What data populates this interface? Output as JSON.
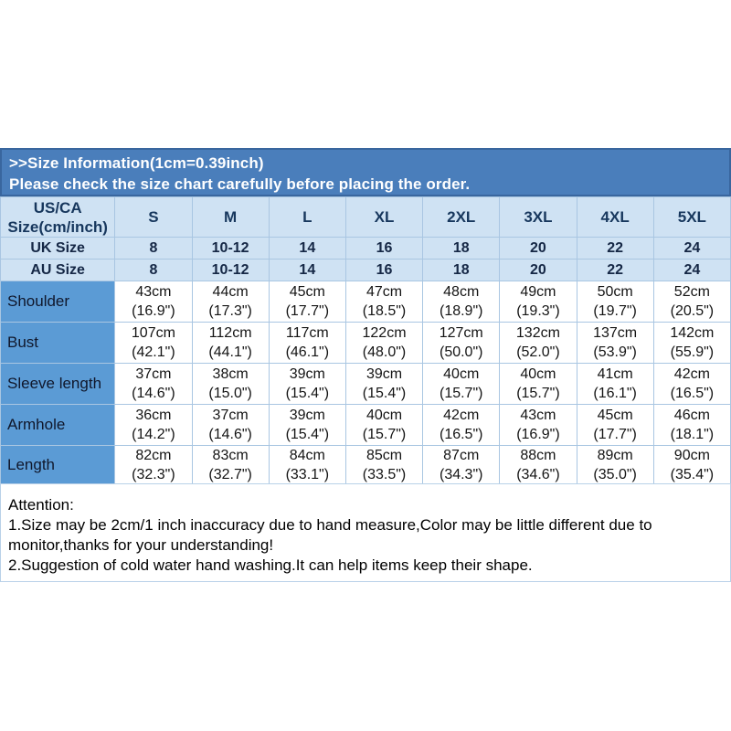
{
  "colors": {
    "title_bar_bg": "#4a7ebb",
    "title_bar_border": "#39669e",
    "title_text": "#ffffff",
    "header_cell_bg": "#cfe2f3",
    "label_cell_bg": "#5b9bd5",
    "grid_line": "#a9c6e2",
    "header_text": "#17375d",
    "cell_text": "#141414"
  },
  "title_bar": {
    "line1": ">>Size Information(1cm=0.39inch)",
    "line2": "Please check the size chart carefully before placing the order."
  },
  "table": {
    "corner_line1": "US/CA",
    "corner_line2": "Size(cm/inch)",
    "columns": [
      "S",
      "M",
      "L",
      "XL",
      "2XL",
      "3XL",
      "4XL",
      "5XL"
    ],
    "uk": {
      "label": "UK Size",
      "values": [
        "8",
        "10-12",
        "14",
        "16",
        "18",
        "20",
        "22",
        "24"
      ]
    },
    "au": {
      "label": "AU Size",
      "values": [
        "8",
        "10-12",
        "14",
        "16",
        "18",
        "20",
        "22",
        "24"
      ]
    },
    "rows": [
      {
        "label": "Shoulder",
        "values": [
          {
            "cm": "43cm",
            "in": "(16.9\")"
          },
          {
            "cm": "44cm",
            "in": "(17.3\")"
          },
          {
            "cm": "45cm",
            "in": "(17.7\")"
          },
          {
            "cm": "47cm",
            "in": "(18.5\")"
          },
          {
            "cm": "48cm",
            "in": "(18.9\")"
          },
          {
            "cm": "49cm",
            "in": "(19.3\")"
          },
          {
            "cm": "50cm",
            "in": "(19.7\")"
          },
          {
            "cm": "52cm",
            "in": "(20.5\")"
          }
        ]
      },
      {
        "label": "Bust",
        "values": [
          {
            "cm": "107cm",
            "in": "(42.1\")"
          },
          {
            "cm": "112cm",
            "in": "(44.1\")"
          },
          {
            "cm": "117cm",
            "in": "(46.1\")"
          },
          {
            "cm": "122cm",
            "in": "(48.0\")"
          },
          {
            "cm": "127cm",
            "in": "(50.0\")"
          },
          {
            "cm": "132cm",
            "in": "(52.0\")"
          },
          {
            "cm": "137cm",
            "in": "(53.9\")"
          },
          {
            "cm": "142cm",
            "in": "(55.9\")"
          }
        ]
      },
      {
        "label": "Sleeve length",
        "values": [
          {
            "cm": "37cm",
            "in": "(14.6\")"
          },
          {
            "cm": "38cm",
            "in": "(15.0\")"
          },
          {
            "cm": "39cm",
            "in": "(15.4\")"
          },
          {
            "cm": "39cm",
            "in": "(15.4\")"
          },
          {
            "cm": "40cm",
            "in": "(15.7\")"
          },
          {
            "cm": "40cm",
            "in": "(15.7\")"
          },
          {
            "cm": "41cm",
            "in": "(16.1\")"
          },
          {
            "cm": "42cm",
            "in": "(16.5\")"
          }
        ]
      },
      {
        "label": "Armhole",
        "values": [
          {
            "cm": "36cm",
            "in": "(14.2\")"
          },
          {
            "cm": "37cm",
            "in": "(14.6\")"
          },
          {
            "cm": "39cm",
            "in": "(15.4\")"
          },
          {
            "cm": "40cm",
            "in": "(15.7\")"
          },
          {
            "cm": "42cm",
            "in": "(16.5\")"
          },
          {
            "cm": "43cm",
            "in": "(16.9\")"
          },
          {
            "cm": "45cm",
            "in": "(17.7\")"
          },
          {
            "cm": "46cm",
            "in": "(18.1\")"
          }
        ]
      },
      {
        "label": "Length",
        "values": [
          {
            "cm": "82cm",
            "in": "(32.3\")"
          },
          {
            "cm": "83cm",
            "in": "(32.7\")"
          },
          {
            "cm": "84cm",
            "in": "(33.1\")"
          },
          {
            "cm": "85cm",
            "in": "(33.5\")"
          },
          {
            "cm": "87cm",
            "in": "(34.3\")"
          },
          {
            "cm": "88cm",
            "in": "(34.6\")"
          },
          {
            "cm": "89cm",
            "in": "(35.0\")"
          },
          {
            "cm": "90cm",
            "in": "(35.4\")"
          }
        ]
      }
    ]
  },
  "attention": {
    "heading": "Attention:",
    "line1": "1.Size may be 2cm/1 inch inaccuracy due to hand measure,Color may be little different due to monitor,thanks for your understanding!",
    "line2": "2.Suggestion of cold water hand washing.It can help items keep their shape."
  }
}
